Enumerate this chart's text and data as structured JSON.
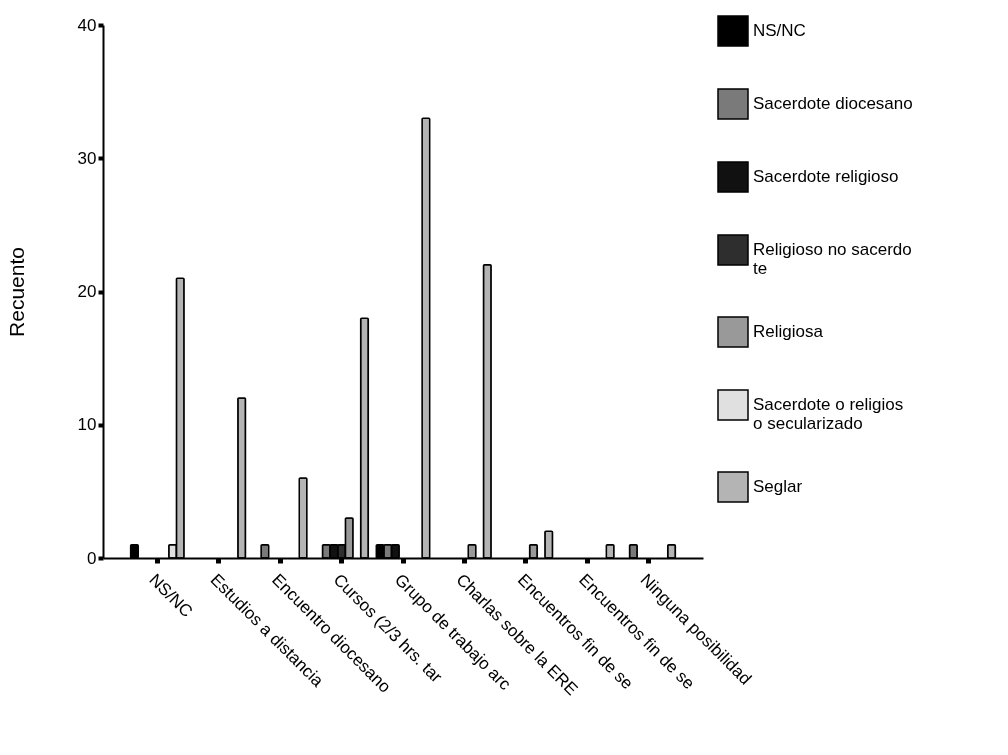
{
  "chart_data": {
    "type": "bar",
    "ylabel": "Recuento",
    "categories": [
      "NS/NC",
      "Estudios a distancia",
      "Encuentro diocesano",
      "Cursos (2/3 hrs. tar",
      "Grupo de trabajo arc",
      "Charlas sobre la ERE",
      "Encuentros fin de se",
      "Encuentros fin de se",
      "Ninguna posibilidad"
    ],
    "series": [
      {
        "name": "NS/NC",
        "color": "#000000",
        "values": [
          1,
          0,
          0,
          0,
          1,
          0,
          0,
          0,
          0
        ]
      },
      {
        "name": "Sacerdote diocesano",
        "color": "#7a7a7a",
        "values": [
          0,
          0,
          1,
          1,
          1,
          0,
          0,
          0,
          1
        ]
      },
      {
        "name": "Sacerdote religioso",
        "color": "#111111",
        "values": [
          0,
          0,
          0,
          1,
          1,
          0,
          0,
          0,
          0
        ]
      },
      {
        "name": "Religioso no sacerdote",
        "color": "#2e2e2e",
        "values": [
          0,
          0,
          0,
          1,
          0,
          0,
          0,
          0,
          0
        ]
      },
      {
        "name": "Religiosa",
        "color": "#999999",
        "values": [
          0,
          0,
          0,
          3,
          0,
          1,
          1,
          0,
          0
        ]
      },
      {
        "name": "Sacerdote o religioso secularizado",
        "color": "#e0e0e0",
        "values": [
          1,
          0,
          0,
          0,
          0,
          0,
          0,
          0,
          0
        ]
      },
      {
        "name": "Seglar",
        "color": "#b4b4b4",
        "values": [
          21,
          12,
          6,
          18,
          33,
          22,
          2,
          1,
          1
        ]
      }
    ],
    "ylim": [
      0,
      40
    ],
    "yticks": [
      0,
      10,
      20,
      30,
      40
    ],
    "grid": false,
    "legend": "right"
  }
}
